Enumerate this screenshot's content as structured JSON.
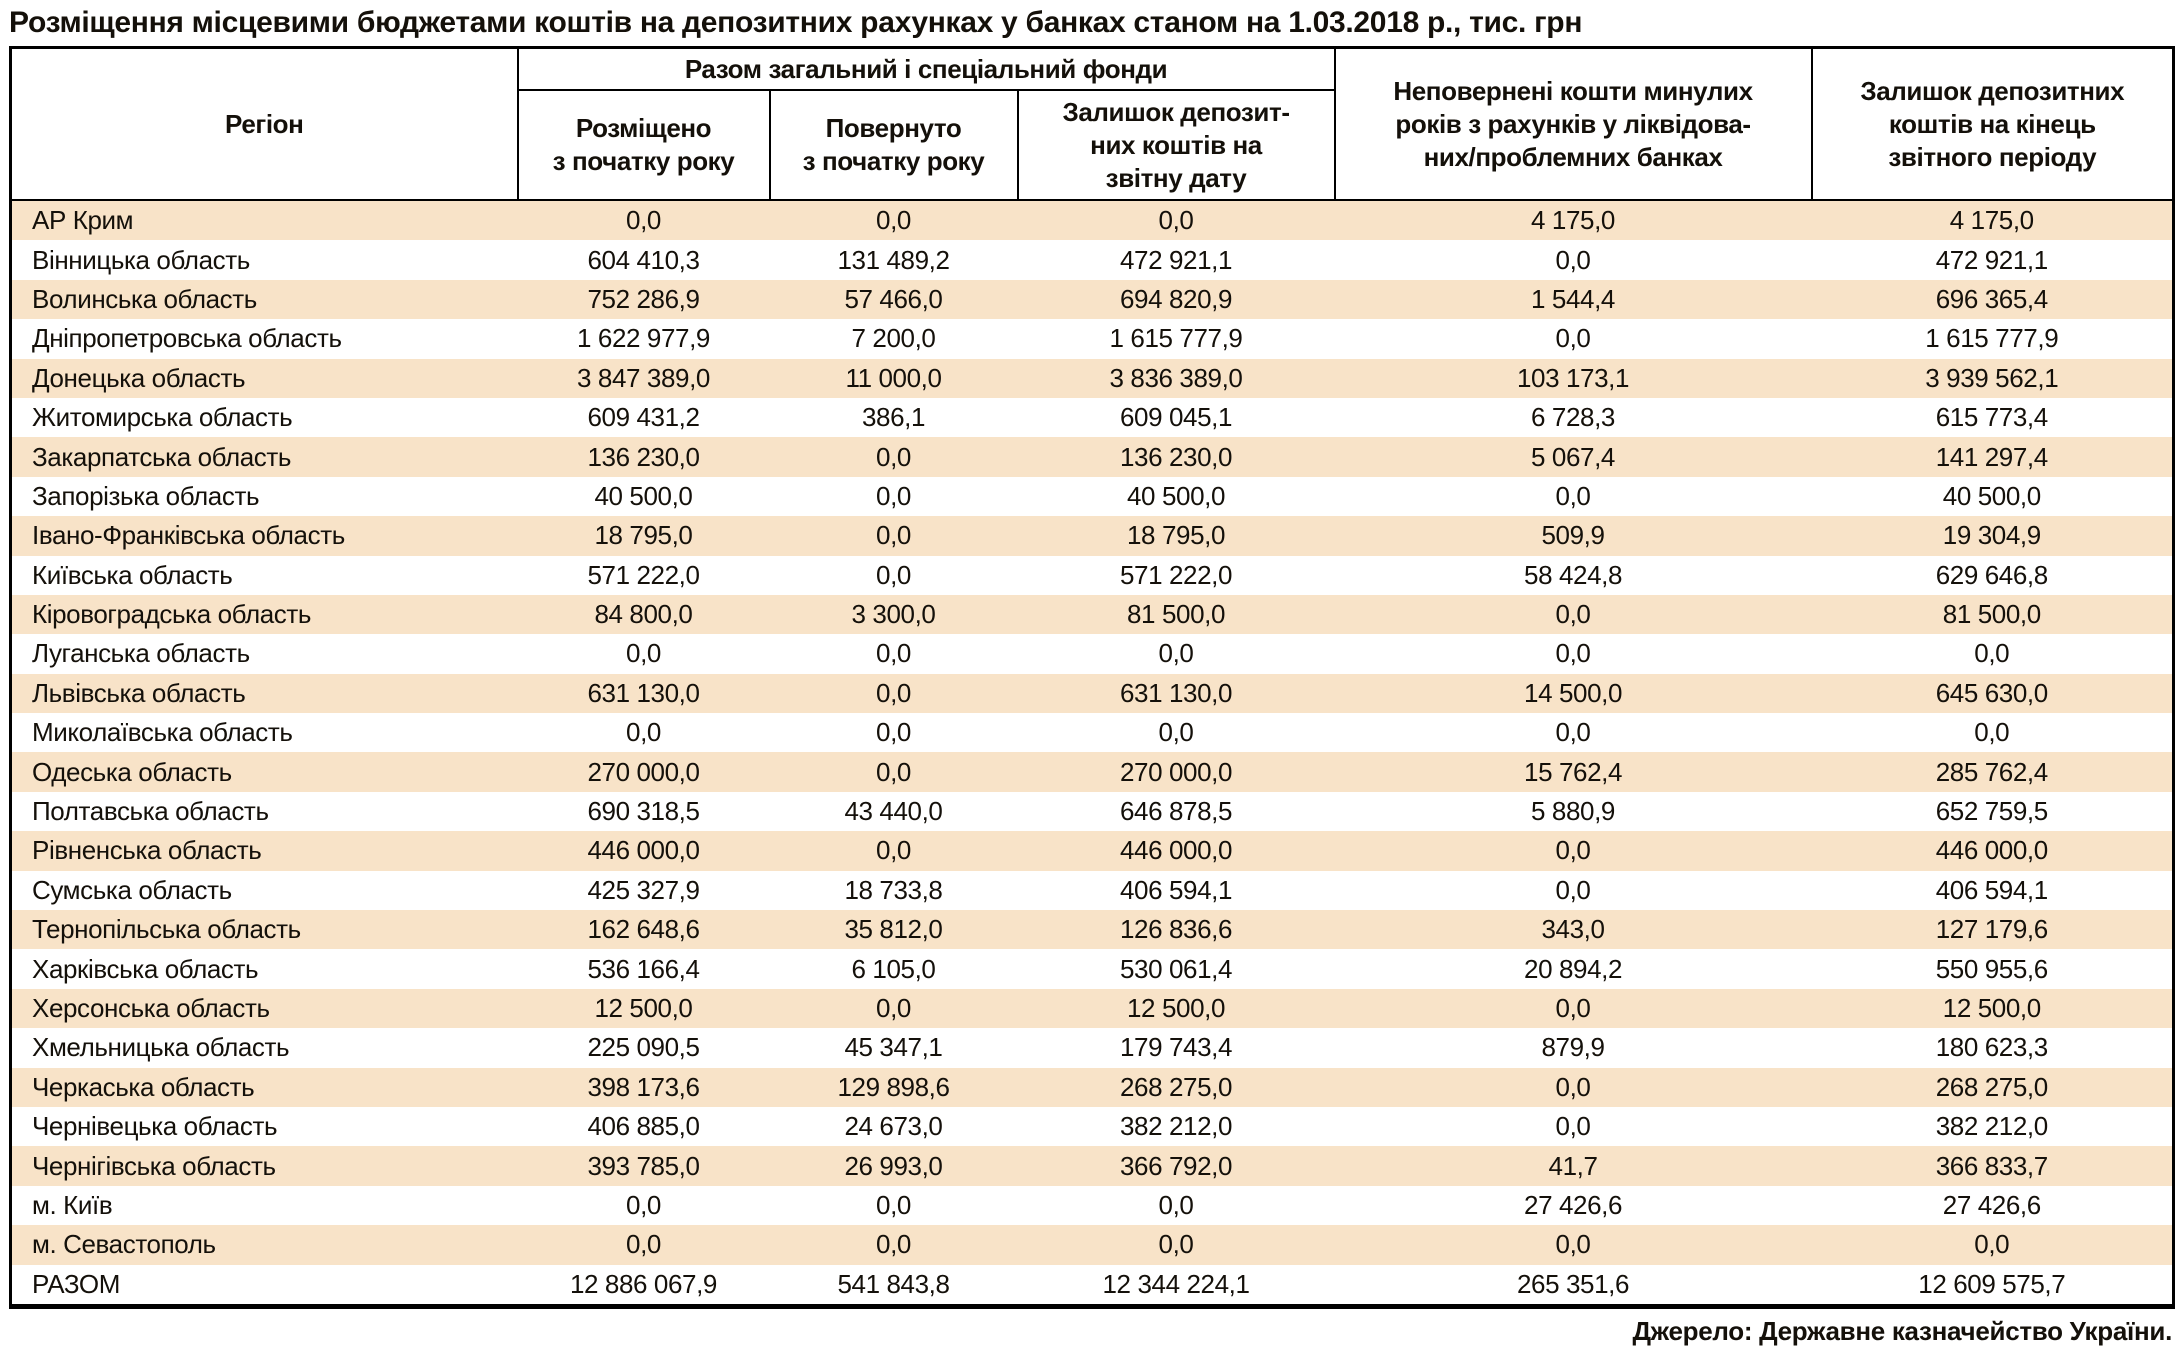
{
  "chart_data": {
    "type": "table",
    "title": "Розміщення місцевими бюджетами коштів на депозитних рахунках у банках станом на 1.03.2018 р., тис. грн",
    "source": "Джерело: Державне казначейство України.",
    "accent_row_color": "#F8E3C8",
    "columns": {
      "region": "Регіон",
      "group": "Разом загальний і спеціальний фонди",
      "placed": "Розміщено\nз початку року",
      "returned": "Повернуто\nз початку року",
      "balance_date": "Залишок депозит-\nних коштів на\nзвітну дату",
      "unreturned": "Неповернені кошти минулих\nроків з рахунків у ліквідова-\nних/проблемних банках",
      "balance_end": "Залишок депозитних\nкоштів на кінець\nзвітного періоду"
    },
    "rows": [
      {
        "region": "АР Крим",
        "values": [
          "0,0",
          "0,0",
          "0,0",
          "4 175,0",
          "4 175,0"
        ]
      },
      {
        "region": "Вінницька область",
        "values": [
          "604 410,3",
          "131 489,2",
          "472 921,1",
          "0,0",
          "472 921,1"
        ]
      },
      {
        "region": "Волинська область",
        "values": [
          "752 286,9",
          "57 466,0",
          "694 820,9",
          "1 544,4",
          "696 365,4"
        ]
      },
      {
        "region": "Дніпропетровська область",
        "values": [
          "1 622 977,9",
          "7 200,0",
          "1 615 777,9",
          "0,0",
          "1 615 777,9"
        ]
      },
      {
        "region": "Донецька область",
        "values": [
          "3 847 389,0",
          "11 000,0",
          "3 836 389,0",
          "103 173,1",
          "3 939 562,1"
        ]
      },
      {
        "region": "Житомирська область",
        "values": [
          "609 431,2",
          "386,1",
          "609 045,1",
          "6 728,3",
          "615 773,4"
        ]
      },
      {
        "region": "Закарпатська область",
        "values": [
          "136 230,0",
          "0,0",
          "136 230,0",
          "5 067,4",
          "141 297,4"
        ]
      },
      {
        "region": "Запорізька область",
        "values": [
          "40 500,0",
          "0,0",
          "40 500,0",
          "0,0",
          "40 500,0"
        ]
      },
      {
        "region": "Івано-Франківська область",
        "values": [
          "18 795,0",
          "0,0",
          "18 795,0",
          "509,9",
          "19 304,9"
        ]
      },
      {
        "region": "Київська область",
        "values": [
          "571 222,0",
          "0,0",
          "571 222,0",
          "58 424,8",
          "629 646,8"
        ]
      },
      {
        "region": "Кіровоградська область",
        "values": [
          "84 800,0",
          "3 300,0",
          "81 500,0",
          "0,0",
          "81 500,0"
        ]
      },
      {
        "region": "Луганська область",
        "values": [
          "0,0",
          "0,0",
          "0,0",
          "0,0",
          "0,0"
        ]
      },
      {
        "region": "Львівська область",
        "values": [
          "631 130,0",
          "0,0",
          "631 130,0",
          "14 500,0",
          "645 630,0"
        ]
      },
      {
        "region": "Миколаївська область",
        "values": [
          "0,0",
          "0,0",
          "0,0",
          "0,0",
          "0,0"
        ]
      },
      {
        "region": "Одеська область",
        "values": [
          "270 000,0",
          "0,0",
          "270 000,0",
          "15 762,4",
          "285 762,4"
        ]
      },
      {
        "region": "Полтавська область",
        "values": [
          "690 318,5",
          "43 440,0",
          "646 878,5",
          "5 880,9",
          "652 759,5"
        ]
      },
      {
        "region": "Рівненська область",
        "values": [
          "446 000,0",
          "0,0",
          "446 000,0",
          "0,0",
          "446 000,0"
        ]
      },
      {
        "region": "Сумська область",
        "values": [
          "425 327,9",
          "18 733,8",
          "406 594,1",
          "0,0",
          "406 594,1"
        ]
      },
      {
        "region": "Тернопільська область",
        "values": [
          "162 648,6",
          "35 812,0",
          "126 836,6",
          "343,0",
          "127 179,6"
        ]
      },
      {
        "region": "Харківська область",
        "values": [
          "536 166,4",
          "6 105,0",
          "530 061,4",
          "20 894,2",
          "550 955,6"
        ]
      },
      {
        "region": "Херсонська область",
        "values": [
          "12 500,0",
          "0,0",
          "12 500,0",
          "0,0",
          "12 500,0"
        ]
      },
      {
        "region": "Хмельницька область",
        "values": [
          "225 090,5",
          "45 347,1",
          "179 743,4",
          "879,9",
          "180 623,3"
        ]
      },
      {
        "region": "Черкаська область",
        "values": [
          "398 173,6",
          "129 898,6",
          "268 275,0",
          "0,0",
          "268 275,0"
        ]
      },
      {
        "region": "Чернівецька область",
        "values": [
          "406 885,0",
          "24 673,0",
          "382 212,0",
          "0,0",
          "382 212,0"
        ]
      },
      {
        "region": "Чернігівська область",
        "values": [
          "393 785,0",
          "26 993,0",
          "366 792,0",
          "41,7",
          "366 833,7"
        ]
      },
      {
        "region": "м. Київ",
        "values": [
          "0,0",
          "0,0",
          "0,0",
          "27 426,6",
          "27 426,6"
        ]
      },
      {
        "region": "м. Севастополь",
        "values": [
          "0,0",
          "0,0",
          "0,0",
          "0,0",
          "0,0"
        ]
      }
    ],
    "total": {
      "region": "РАЗОМ",
      "values": [
        "12 886 067,9",
        "541 843,8",
        "12 344 224,1",
        "265 351,6",
        "12 609 575,7"
      ]
    }
  }
}
